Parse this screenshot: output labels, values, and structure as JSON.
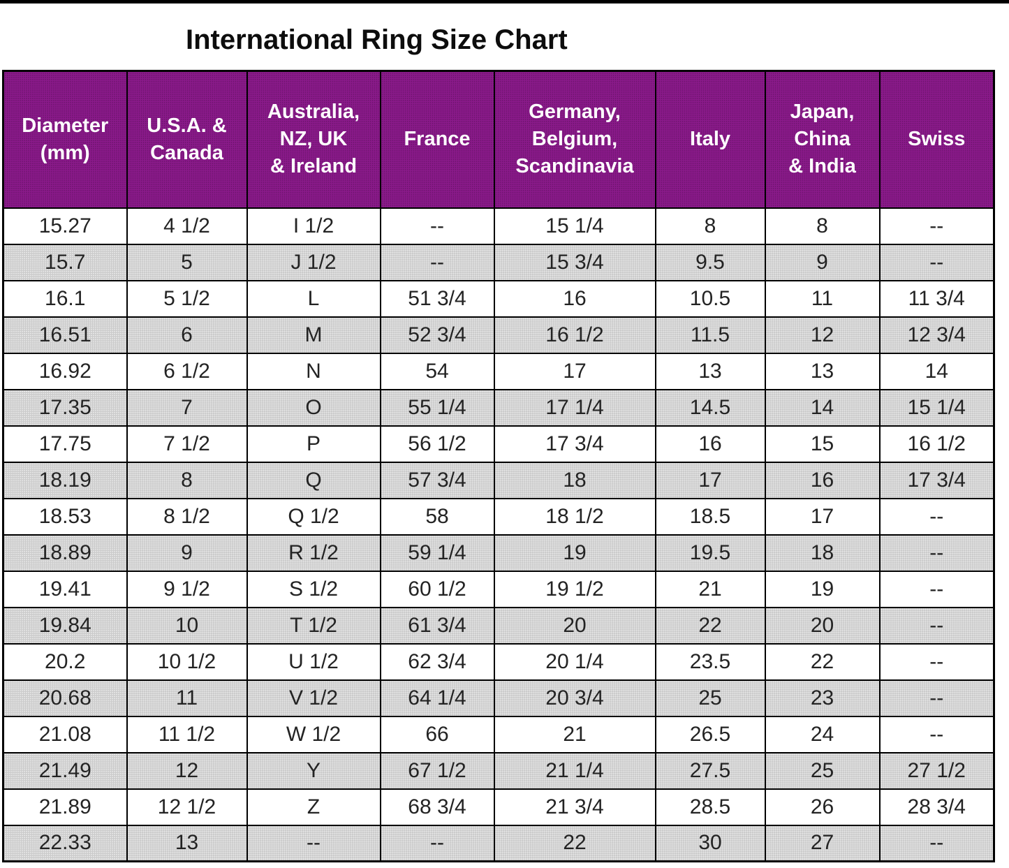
{
  "title": "International Ring Size Chart",
  "colors": {
    "header_bg": "#8B1A8B",
    "header_text": "#FFFFFF",
    "row_white_bg": "#FFFFFF",
    "row_gray_bg": "#CBCBCB",
    "border": "#000000",
    "cell_text": "#232323",
    "title_text": "#0D0D0D"
  },
  "table": {
    "header_lines": [
      "Diameter\n(mm)",
      "U.S.A. &\nCanada",
      "Australia,\nNZ, UK\n& Ireland",
      "France",
      "Germany,\nBelgium,\nScandinavia",
      "Italy",
      "Japan,\nChina\n& India",
      "Swiss"
    ]
  },
  "chart_data": {
    "type": "table",
    "title": "International Ring Size Chart",
    "columns": [
      "Diameter (mm)",
      "U.S.A. & Canada",
      "Australia, NZ, UK & Ireland",
      "France",
      "Germany, Belgium, Scandinavia",
      "Italy",
      "Japan, China & India",
      "Swiss"
    ],
    "rows": [
      [
        "15.27",
        "4 1/2",
        "I 1/2",
        "--",
        "15 1/4",
        "8",
        "8",
        "--"
      ],
      [
        "15.7",
        "5",
        "J 1/2",
        "--",
        "15 3/4",
        "9.5",
        "9",
        "--"
      ],
      [
        "16.1",
        "5 1/2",
        "L",
        "51 3/4",
        "16",
        "10.5",
        "11",
        "11 3/4"
      ],
      [
        "16.51",
        "6",
        "M",
        "52 3/4",
        "16 1/2",
        "11.5",
        "12",
        "12 3/4"
      ],
      [
        "16.92",
        "6 1/2",
        "N",
        "54",
        "17",
        "13",
        "13",
        "14"
      ],
      [
        "17.35",
        "7",
        "O",
        "55 1/4",
        "17 1/4",
        "14.5",
        "14",
        "15 1/4"
      ],
      [
        "17.75",
        "7 1/2",
        "P",
        "56 1/2",
        "17 3/4",
        "16",
        "15",
        "16 1/2"
      ],
      [
        "18.19",
        "8",
        "Q",
        "57 3/4",
        "18",
        "17",
        "16",
        "17 3/4"
      ],
      [
        "18.53",
        "8 1/2",
        "Q 1/2",
        "58",
        "18 1/2",
        "18.5",
        "17",
        "--"
      ],
      [
        "18.89",
        "9",
        "R 1/2",
        "59 1/4",
        "19",
        "19.5",
        "18",
        "--"
      ],
      [
        "19.41",
        "9 1/2",
        "S 1/2",
        "60 1/2",
        "19 1/2",
        "21",
        "19",
        "--"
      ],
      [
        "19.84",
        "10",
        "T 1/2",
        "61 3/4",
        "20",
        "22",
        "20",
        "--"
      ],
      [
        "20.2",
        "10 1/2",
        "U 1/2",
        "62 3/4",
        "20 1/4",
        "23.5",
        "22",
        "--"
      ],
      [
        "20.68",
        "11",
        "V 1/2",
        "64 1/4",
        "20 3/4",
        "25",
        "23",
        "--"
      ],
      [
        "21.08",
        "11 1/2",
        "W 1/2",
        "66",
        "21",
        "26.5",
        "24",
        "--"
      ],
      [
        "21.49",
        "12",
        "Y",
        "67 1/2",
        "21 1/4",
        "27.5",
        "25",
        "27 1/2"
      ],
      [
        "21.89",
        "12 1/2",
        "Z",
        "68 3/4",
        "21 3/4",
        "28.5",
        "26",
        "28 3/4"
      ],
      [
        "22.33",
        "13",
        "--",
        "--",
        "22",
        "30",
        "27",
        "--"
      ]
    ]
  }
}
